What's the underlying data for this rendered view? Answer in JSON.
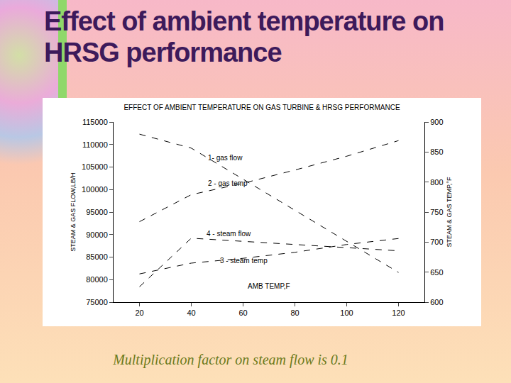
{
  "slide_title": "Effect of ambient temperature on HRSG performance",
  "note": "Multiplication factor on steam flow is 0.1",
  "chart_data": {
    "type": "line",
    "title": "EFFECT OF AMBIENT TEMPERATURE ON GAS TURBINE & HRSG PERFORMANCE",
    "x_label": "AMB TEMP,F",
    "y_label": "STEAM & GAS FLOW,LB/H",
    "y2_label": "STEAM & GAS TEMP,°F",
    "x": [
      20,
      40,
      60,
      80,
      100,
      120
    ],
    "xlim": [
      10,
      130
    ],
    "xticks": [
      20,
      40,
      60,
      80,
      100,
      120
    ],
    "ylim": [
      75000,
      115000
    ],
    "yticks": [
      75000,
      80000,
      85000,
      90000,
      95000,
      100000,
      105000,
      110000,
      115000
    ],
    "y2lim": [
      600,
      900
    ],
    "y2ticks": [
      600,
      650,
      700,
      750,
      800,
      850,
      900
    ],
    "grid": false,
    "series": [
      {
        "name": "1- gas flow",
        "color": "#000000",
        "line_style": "dash",
        "axis": "y",
        "values": [
          112300,
          109200,
          102300,
          95400,
          88500,
          81600
        ]
      },
      {
        "name": "2 - gas temp",
        "color": "#000000",
        "line_style": "dash",
        "axis": "y2",
        "values": [
          734,
          779,
          798,
          820,
          843,
          869
        ]
      },
      {
        "name": "3 - steam temp",
        "color": "#000000",
        "line_style": "dash",
        "axis": "y2",
        "values": [
          647,
          665,
          673,
          683,
          696,
          706
        ]
      },
      {
        "name": "4 - steam flow",
        "color": "#000000",
        "line_style": "dash",
        "axis": "y",
        "values": [
          78400,
          89200,
          88500,
          87800,
          87000,
          86400
        ]
      }
    ]
  }
}
